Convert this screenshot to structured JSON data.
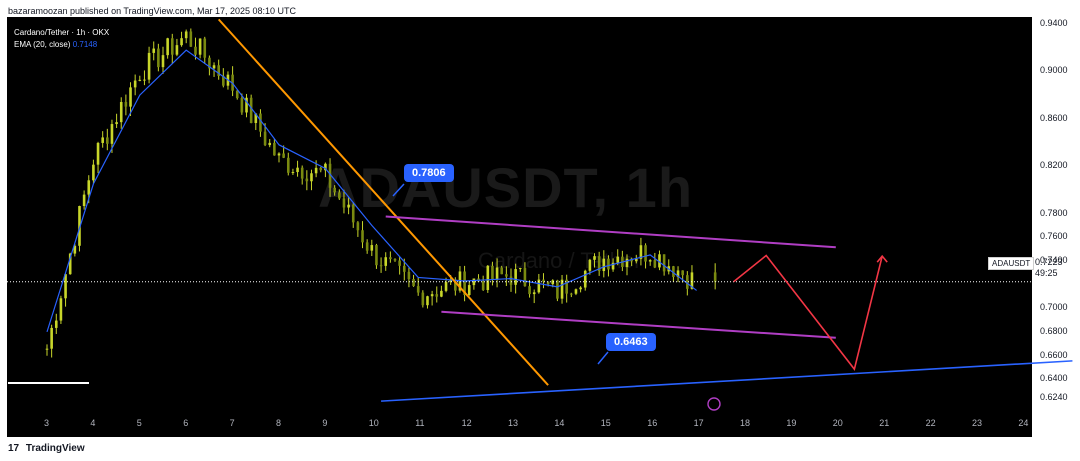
{
  "header": {
    "published": "bazaramoozan published on TradingView.com, Mar 17, 2025 08:10 UTC"
  },
  "legend": {
    "symbol": "Cardano/Tether · 1h · OKX",
    "ema_label": "EMA (20, close)",
    "ema_value": "0.7148"
  },
  "watermark": {
    "main": "ADAUSDT, 1h",
    "sub": "Cardano / Tether"
  },
  "price_axis": {
    "ticks": [
      "0.9400",
      "0.9000",
      "0.8600",
      "0.8200",
      "0.7800",
      "0.7600",
      "0.7400",
      "0.7000",
      "0.6800",
      "0.6600",
      "0.6400",
      "0.6240"
    ]
  },
  "current": {
    "symbol": "ADAUSDT",
    "price": "0.7223",
    "countdown": "49:25"
  },
  "annotations": {
    "high": "0.7806",
    "low": "0.6463"
  },
  "time_axis": {
    "labels": [
      "3",
      "4",
      "5",
      "6",
      "7",
      "8",
      "9",
      "10",
      "11",
      "12",
      "13",
      "14",
      "15",
      "16",
      "17",
      "18",
      "19",
      "20",
      "21",
      "22",
      "23",
      "24"
    ]
  },
  "footer": {
    "brand": "TradingView",
    "logo": "17"
  },
  "chart_data": {
    "type": "line",
    "title": "Cardano/Tether · 1h · OKX",
    "xlabel": "",
    "ylabel": "",
    "x": [
      "3",
      "4",
      "5",
      "6",
      "7",
      "8",
      "9",
      "10",
      "11",
      "12",
      "13",
      "14",
      "15",
      "16",
      "17"
    ],
    "series": [
      {
        "name": "Cardano/Tether",
        "values": [
          0.666,
          0.826,
          0.9,
          0.93,
          0.887,
          0.825,
          0.812,
          0.748,
          0.712,
          0.722,
          0.728,
          0.714,
          0.742,
          0.748,
          0.722
        ]
      },
      {
        "name": "EMA (20, close)",
        "values": [
          0.68,
          0.805,
          0.88,
          0.918,
          0.89,
          0.838,
          0.818,
          0.77,
          0.726,
          0.723,
          0.725,
          0.718,
          0.735,
          0.745,
          0.715
        ]
      }
    ],
    "ylim": [
      0.614,
      0.946
    ],
    "current_price": 0.7223,
    "annotated_levels": [
      0.7806,
      0.6463
    ],
    "colors": {
      "candle_body": "#c8d62a",
      "ema": "#2962ff",
      "channel": "#b03ec4",
      "trendline": "#ff9800",
      "support": "#2962ff",
      "projection": "#f23645"
    }
  }
}
